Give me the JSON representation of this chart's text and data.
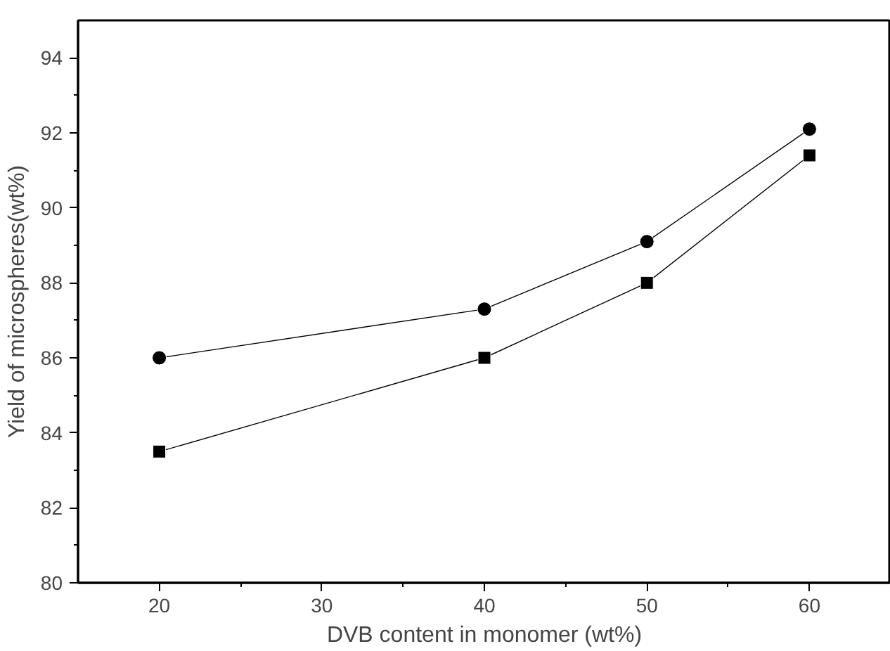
{
  "chart_data": {
    "type": "line",
    "xlabel": "DVB content in monomer (wt%)",
    "ylabel": "Yield of microspheres(wt%)",
    "x": [
      20,
      40,
      50,
      60
    ],
    "series": [
      {
        "color": "#000000",
        "marker": "circle",
        "values": [
          86.0,
          87.3,
          89.1,
          92.1
        ]
      },
      {
        "color": "#000000",
        "marker": "square",
        "values": [
          83.5,
          86.0,
          88.0,
          91.4
        ]
      }
    ],
    "xlim": [
      15,
      65
    ],
    "ylim": [
      80,
      95
    ],
    "xticks": [
      20,
      30,
      40,
      50,
      60
    ],
    "yticks": [
      80,
      82,
      84,
      86,
      88,
      90,
      92,
      94
    ]
  }
}
